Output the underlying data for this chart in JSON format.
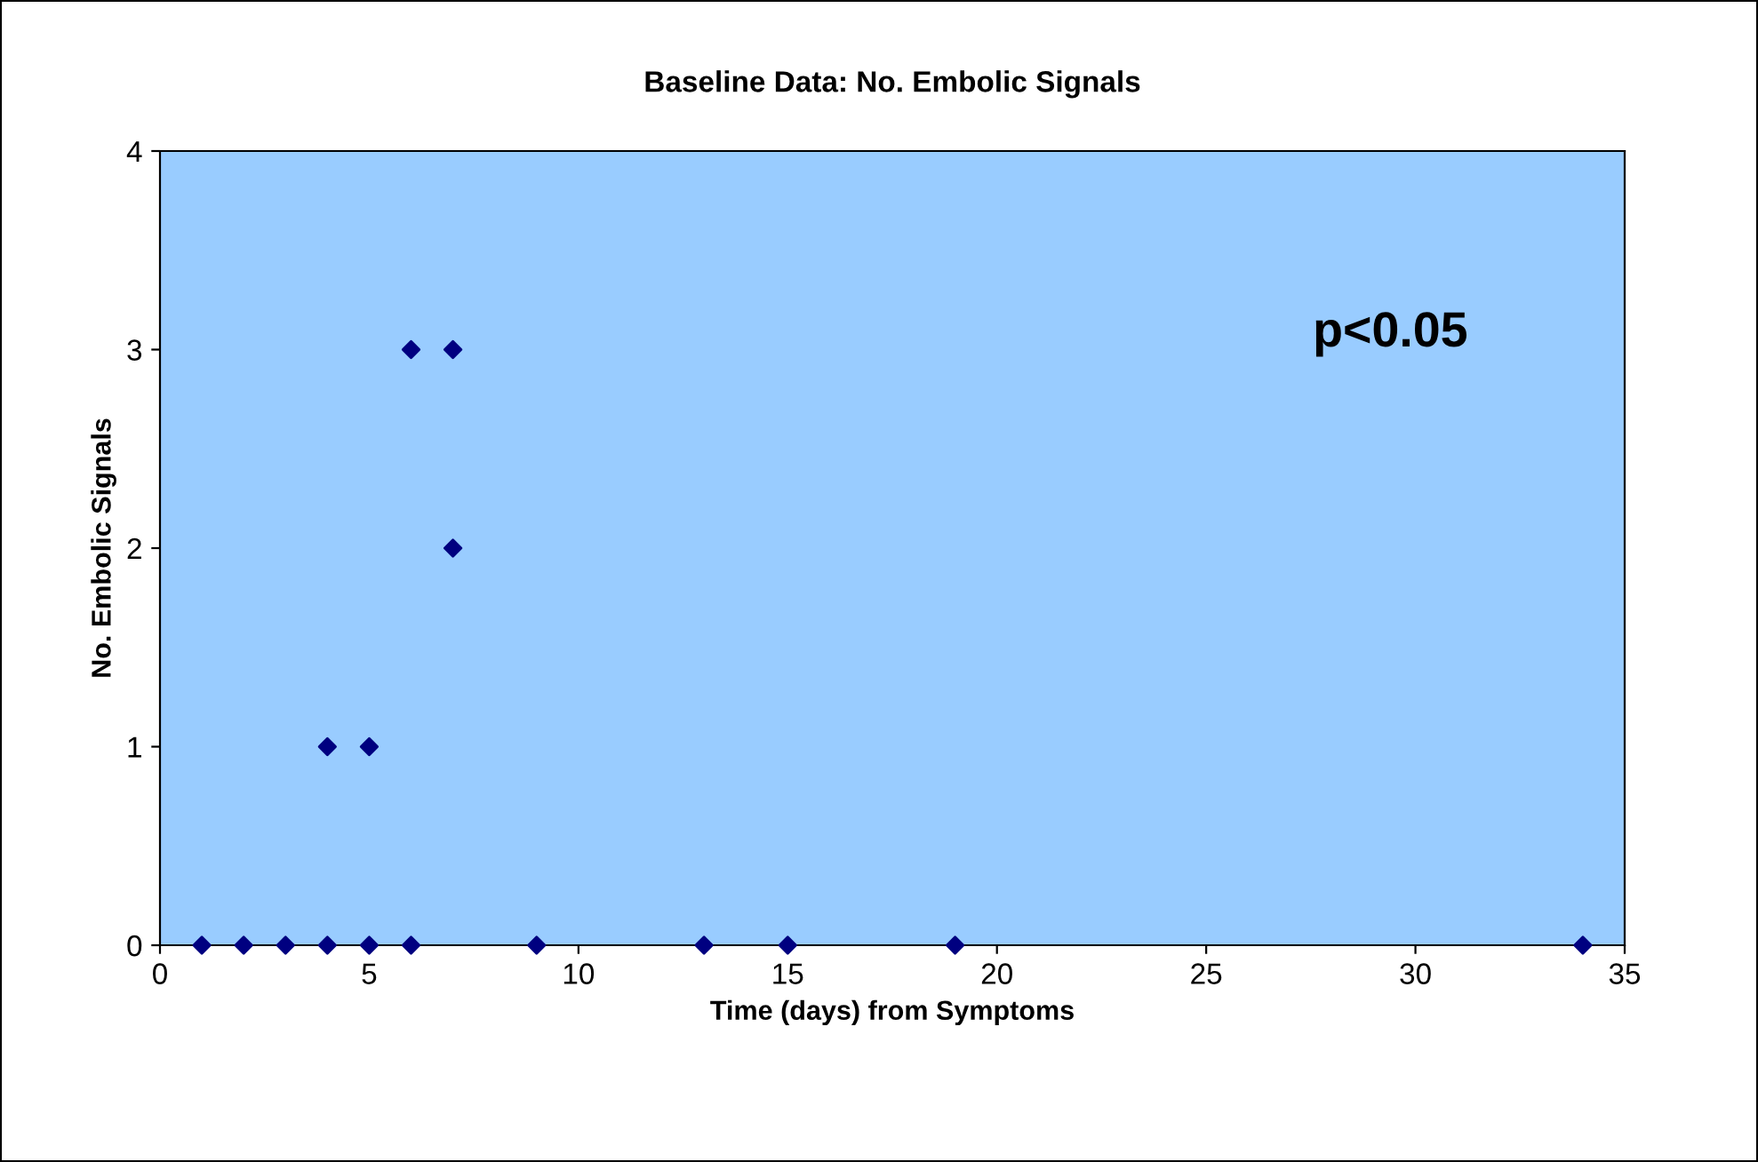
{
  "chart_data": {
    "type": "scatter",
    "title": "Baseline Data: No. Embolic Signals",
    "xlabel": "Time (days) from Symptoms",
    "ylabel": "No. Embolic Signals",
    "x": [
      1,
      2,
      3,
      4,
      5,
      6,
      9,
      13,
      15,
      19,
      34,
      4,
      5,
      6,
      7,
      7
    ],
    "values": [
      0,
      0,
      0,
      0,
      0,
      0,
      0,
      0,
      0,
      0,
      0,
      1,
      1,
      3,
      3,
      2
    ],
    "color": "#000080",
    "marker": "diamond",
    "xlim": [
      0,
      35
    ],
    "xticks": [
      0,
      5,
      10,
      15,
      20,
      25,
      30,
      35
    ],
    "ylim": [
      0,
      4
    ],
    "yticks": [
      0,
      1,
      2,
      3,
      4
    ],
    "grid": false,
    "legend": false,
    "annotations": [
      "p<0.05"
    ]
  }
}
